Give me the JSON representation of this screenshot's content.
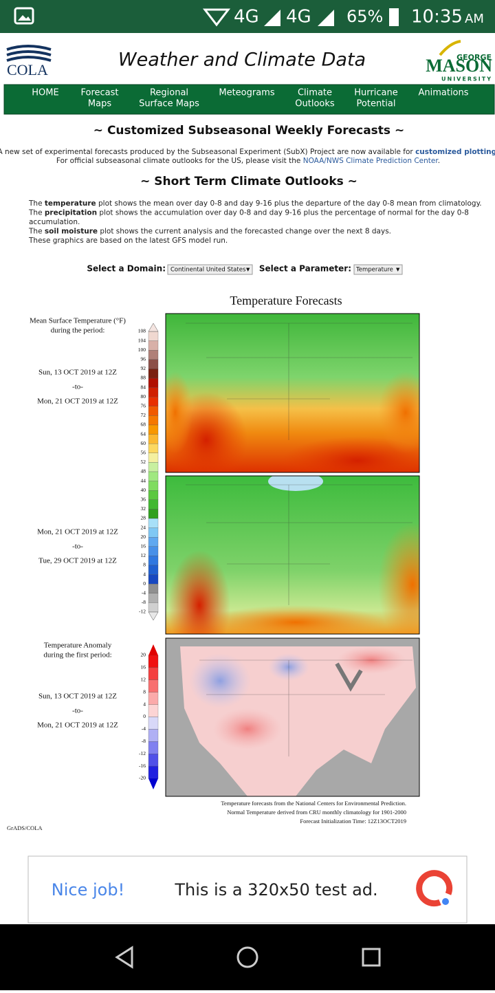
{
  "status_bar": {
    "network1": "4G",
    "network2": "4G",
    "battery": "65%",
    "time": "10:35",
    "ampm": "AM"
  },
  "header": {
    "logo": "COLA",
    "title": "Weather and Climate Data",
    "gmu_top": "GEORGE",
    "gmu_main": "MASON",
    "gmu_bottom": "UNIVERSITY"
  },
  "nav": [
    [
      "HOME"
    ],
    [
      "Forecast",
      "Maps"
    ],
    [
      "Regional",
      "Surface Maps"
    ],
    [
      "Meteograms"
    ],
    [
      "Climate",
      "Outlooks"
    ],
    [
      "Hurricane",
      "Potential"
    ],
    [
      "Animations"
    ]
  ],
  "subseasonal": {
    "heading": "~ Customized Subseasonal Weekly Forecasts ~",
    "line1": "A new set of experimental forecasts produced by the Subseasonal Experiment (SubX) Project are now available for ",
    "link1": "customized plotting",
    "end1": ".",
    "line2": "For official subseasonal climate outlooks for the US, please visit the ",
    "link2": "NOAA/NWS Climate Prediction Center",
    "end2": "."
  },
  "short_term": {
    "heading": "~ Short Term Climate Outlooks ~",
    "lines": [
      [
        "The ",
        "temperature",
        " plot shows the mean over day 0-8 and day 9-16 plus the departure of the day 0-8 mean from climatology."
      ],
      [
        "The ",
        "precipitation",
        " plot shows the accumulation over day 0-8 and day 9-16 plus the percentage of normal for the day 0-8"
      ],
      [
        "accumulation."
      ],
      [
        "The ",
        "soil moisture",
        " plot shows the current analysis and the forecasted change over the next 8 days."
      ],
      [
        "These graphics are based on the latest GFS model run."
      ]
    ]
  },
  "selectors": {
    "domain_label": "Select a Domain:",
    "domain_value": "Continental United States",
    "parameter_label": "Select a Parameter:",
    "parameter_value": "Temperature"
  },
  "figure": {
    "title": "Temperature Forecasts",
    "mean_label": [
      "Mean Surface Temperature (°F)",
      "during the period:"
    ],
    "period1": [
      "Sun, 13 OCT 2019 at 12Z",
      "-to-",
      "Mon, 21 OCT 2019 at 12Z"
    ],
    "period2": [
      "Mon, 21 OCT 2019 at 12Z",
      "-to-",
      "Tue, 29 OCT 2019 at 12Z"
    ],
    "anomaly_label": [
      "Temperature Anomaly",
      "during the first period:"
    ],
    "period3": [
      "Sun, 13 OCT 2019 at 12Z",
      "-to-",
      "Mon, 21 OCT 2019 at 12Z"
    ],
    "temp_scale": [
      108,
      104,
      100,
      96,
      92,
      88,
      84,
      80,
      76,
      72,
      68,
      64,
      60,
      56,
      52,
      48,
      44,
      40,
      36,
      32,
      28,
      24,
      20,
      16,
      12,
      8,
      4,
      0,
      -4,
      -8,
      -12
    ],
    "anomaly_scale": [
      20,
      16,
      12,
      8,
      4,
      0,
      -4,
      -8,
      -12,
      -16,
      -20
    ],
    "notes": [
      "Temperature forecasts from the National Centers for Environmental Prediction.",
      "Normal Temperature derived from CRU monthly climatology for 1901-2000",
      "Forecast Initialization Time: 12Z13OCT2019"
    ],
    "credit": "GrADS/COLA"
  },
  "ad": {
    "left": "Nice job!",
    "text": "This is a 320x50 test ad."
  }
}
